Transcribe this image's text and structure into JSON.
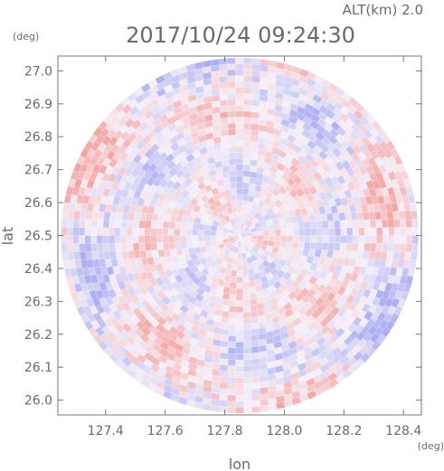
{
  "chart_data": {
    "type": "heatmap",
    "title": "2017/10/24 09:24:30",
    "altitude_label": "ALT(km) 2.0",
    "xlabel": "lon",
    "ylabel": "lat",
    "x_unit": "(deg)",
    "y_unit": "(deg)",
    "xlim": [
      127.24,
      128.46
    ],
    "ylim": [
      25.955,
      27.045
    ],
    "x_ticks": [
      "127.4",
      "127.6",
      "127.8",
      "128.0",
      "128.2",
      "128.4"
    ],
    "y_ticks": [
      "26.0",
      "26.1",
      "26.2",
      "26.3",
      "26.4",
      "26.5",
      "26.6",
      "26.7",
      "26.8",
      "26.9",
      "27.0"
    ],
    "center": {
      "lon": 127.85,
      "lat": 26.5
    },
    "range_radius_deg": {
      "lon": 0.6,
      "lat": 0.54
    },
    "colors": {
      "positive": "#f4a3a3",
      "negative": "#a8acf2",
      "zero": "#f6f0f8"
    },
    "grid": false
  }
}
